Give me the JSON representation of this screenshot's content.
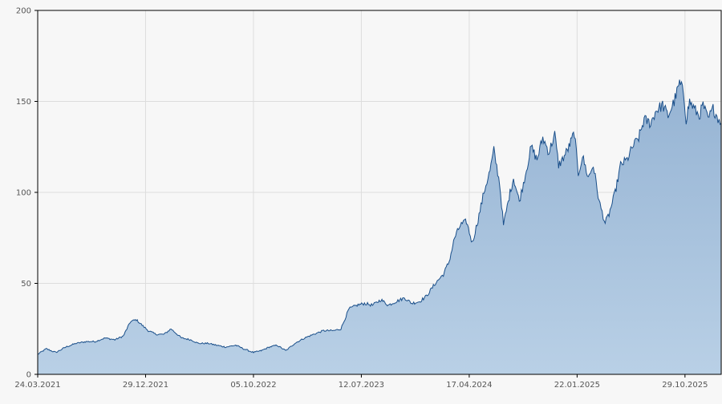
{
  "chart_data": {
    "type": "area",
    "title": "",
    "xlabel": "",
    "ylabel": "",
    "ylim": [
      0,
      200
    ],
    "yticks": [
      "0",
      "50",
      "100",
      "150",
      "200"
    ],
    "xticks": [
      "24.03.2021",
      "29.12.2021",
      "05.10.2022",
      "12.07.2023",
      "17.04.2024",
      "22.01.2025",
      "29.10.2025"
    ],
    "xlim": [
      "24.03.2021",
      "31.01.2026"
    ],
    "grid": true,
    "legend": "none",
    "colors": {
      "line": "#1a4f8a",
      "fill_top": "#95b3d3",
      "fill_bottom": "#b9d0e6",
      "grid": "#dddddd",
      "plot_bg": "#f7f7f7",
      "axis": "#000000"
    },
    "series": [
      {
        "x": [
          "24.03.2021",
          "15.04.2021",
          "10.05.2021",
          "05.06.2021",
          "01.07.2021",
          "28.07.2021",
          "20.08.2021",
          "15.09.2021",
          "10.10.2021",
          "01.11.2021",
          "20.11.2021",
          "05.12.2021",
          "20.12.2021",
          "05.01.2022",
          "25.01.2022",
          "15.02.2022",
          "05.03.2022",
          "01.04.2022",
          "25.04.2022",
          "15.05.2022",
          "10.06.2022",
          "01.07.2022",
          "25.07.2022",
          "20.08.2022",
          "10.09.2022",
          "05.10.2022",
          "25.10.2022",
          "15.11.2022",
          "05.12.2022",
          "28.12.2022",
          "20.01.2023",
          "15.02.2023",
          "10.03.2023",
          "05.04.2023",
          "01.05.2023",
          "20.05.2023",
          "10.06.2023",
          "01.07.2023",
          "20.07.2023",
          "10.08.2023",
          "01.09.2023",
          "20.09.2023",
          "10.10.2023",
          "01.11.2023",
          "20.11.2023",
          "10.12.2023",
          "28.12.2023",
          "20.01.2024",
          "10.02.2024",
          "25.02.2024",
          "10.03.2024",
          "25.03.2024",
          "10.04.2024",
          "25.04.2024",
          "10.05.2024",
          "25.05.2024",
          "10.06.2024",
          "20.06.2024",
          "05.07.2024",
          "15.07.2024",
          "01.08.2024",
          "10.08.2024",
          "25.08.2024",
          "10.09.2024",
          "25.09.2024",
          "10.10.2024",
          "25.10.2024",
          "10.11.2024",
          "25.11.2024",
          "05.12.2024",
          "15.12.2024",
          "01.01.2025",
          "15.01.2025",
          "25.01.2025",
          "05.02.2025",
          "20.02.2025",
          "05.03.2025",
          "20.03.2025",
          "05.04.2025",
          "15.04.2025",
          "01.05.2025",
          "15.05.2025",
          "01.06.2025",
          "15.06.2025",
          "01.07.2025",
          "15.07.2025",
          "01.08.2025",
          "15.08.2025",
          "01.09.2025",
          "15.09.2025",
          "01.10.2025",
          "15.10.2025",
          "25.10.2025",
          "01.11.2025",
          "10.11.2025",
          "25.11.2025",
          "05.12.2025",
          "15.12.2025",
          "28.12.2025",
          "10.01.2026",
          "20.01.2026",
          "31.01.2026"
        ],
        "values": [
          11,
          14,
          12,
          15,
          17,
          18,
          18,
          20,
          19,
          21,
          29,
          30,
          27,
          24,
          22,
          22,
          25,
          20,
          19,
          17,
          17,
          16,
          15,
          16,
          14,
          12,
          13,
          15,
          16,
          13,
          17,
          20,
          22,
          24,
          24,
          25,
          36,
          38,
          39,
          38,
          41,
          38,
          40,
          42,
          39,
          40,
          43,
          50,
          55,
          62,
          75,
          82,
          84,
          72,
          85,
          100,
          112,
          123,
          105,
          82,
          100,
          108,
          95,
          110,
          125,
          118,
          130,
          122,
          132,
          115,
          118,
          125,
          133,
          110,
          120,
          108,
          115,
          95,
          83,
          88,
          100,
          115,
          118,
          125,
          130,
          140,
          138,
          145,
          148,
          142,
          150,
          160,
          155,
          140,
          150,
          145,
          142,
          148,
          140,
          146,
          142,
          138
        ]
      }
    ]
  }
}
